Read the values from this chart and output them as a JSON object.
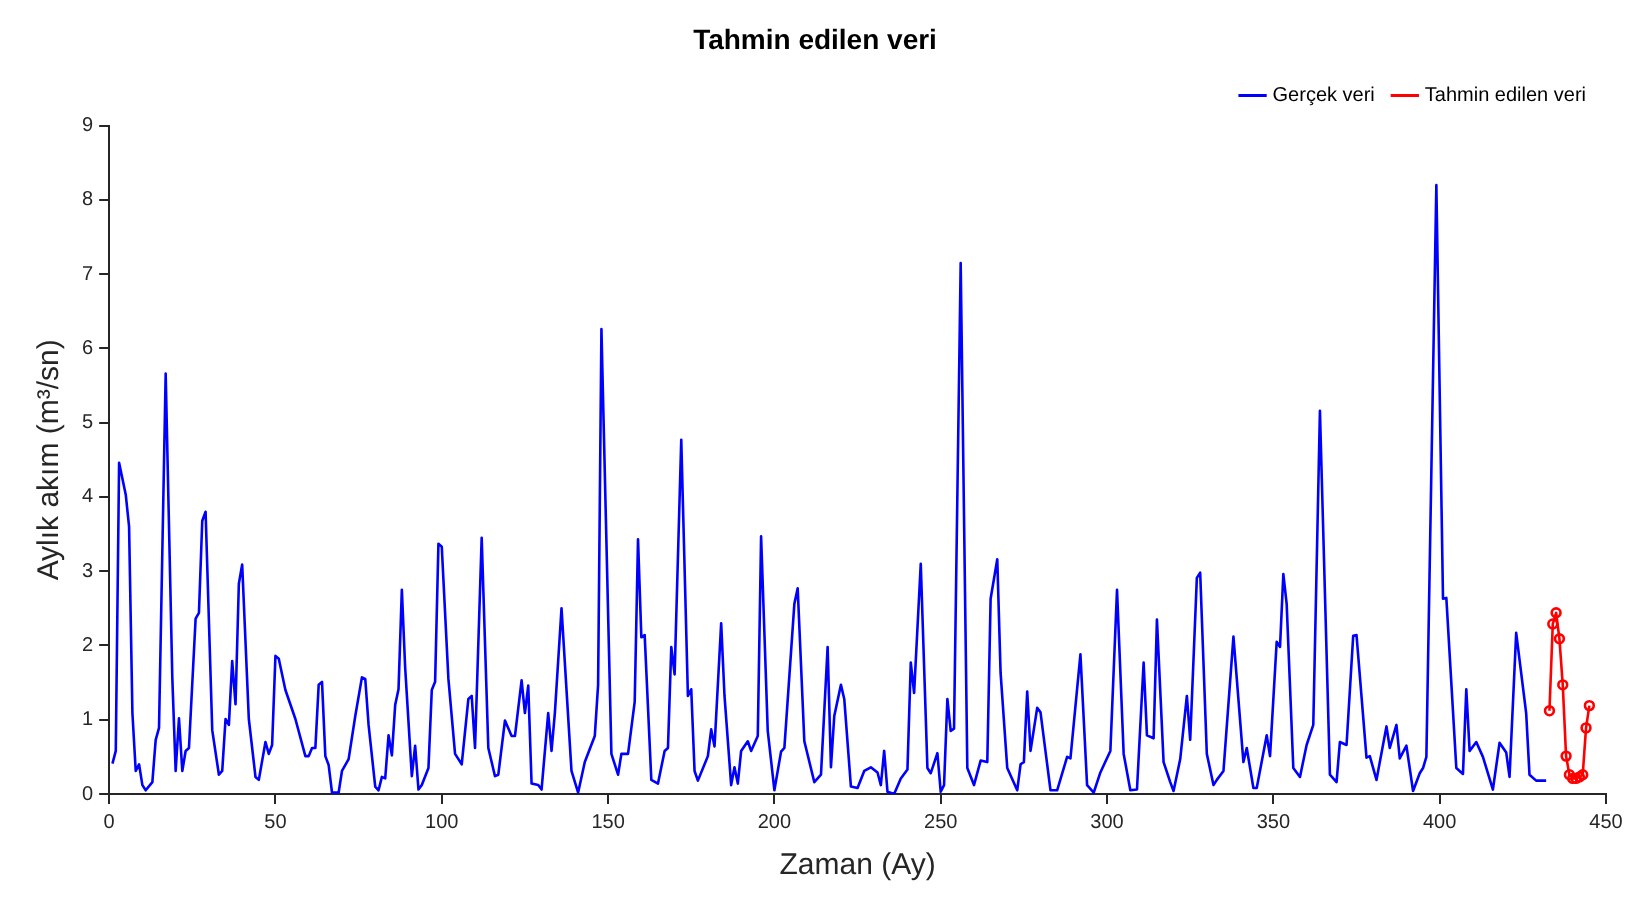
{
  "chart_data": {
    "type": "line",
    "title": "Tahmin edilen veri",
    "xlabel": "Zaman (Ay)",
    "ylabel": "Aylık akım (m³/sn)",
    "xlim": [
      0,
      450
    ],
    "xticks": [
      0,
      50,
      100,
      150,
      200,
      250,
      300,
      350,
      400,
      450
    ],
    "ylim": [
      0,
      9
    ],
    "yticks": [
      0,
      1,
      2,
      3,
      4,
      5,
      6,
      7,
      8,
      9
    ],
    "grid": false,
    "legend": "top right",
    "series": [
      {
        "name": "Gerçek veri",
        "color": "#0000ff",
        "marker": "none",
        "x": [
          1,
          2,
          3,
          5,
          6,
          7,
          8,
          9,
          10,
          11,
          13,
          14,
          15,
          17,
          19,
          20,
          21,
          22,
          23,
          24,
          26,
          27,
          28,
          29,
          31,
          33,
          34,
          35,
          36,
          37,
          38,
          39,
          40,
          42,
          44,
          45,
          47,
          48,
          49,
          50,
          51,
          53,
          56,
          59,
          60,
          61,
          62,
          63,
          64,
          65,
          66,
          67,
          69,
          70,
          72,
          74,
          76,
          77,
          78,
          80,
          81,
          82,
          83,
          84,
          85,
          86,
          87,
          88,
          89,
          91,
          92,
          93,
          94,
          96,
          97,
          98,
          99,
          100,
          102,
          104,
          106,
          108,
          109,
          110,
          112,
          114,
          116,
          117,
          119,
          121,
          122,
          124,
          125,
          126,
          127,
          129,
          130,
          132,
          133,
          134,
          136,
          139,
          141,
          143,
          146,
          147,
          148,
          151,
          153,
          154,
          156,
          158,
          159,
          160,
          161,
          163,
          165,
          167,
          168,
          169,
          170,
          172,
          174,
          175,
          176,
          177,
          180,
          181,
          182,
          184,
          185,
          187,
          188,
          189,
          190,
          192,
          193,
          195,
          196,
          198,
          200,
          202,
          203,
          206,
          207,
          209,
          212,
          214,
          216,
          217,
          218,
          220,
          221,
          223,
          225,
          227,
          229,
          231,
          232,
          233,
          234,
          236,
          238,
          240,
          241,
          242,
          244,
          246,
          247,
          249,
          250,
          251,
          252,
          253,
          254,
          256,
          258,
          260,
          262,
          264,
          265,
          267,
          268,
          270,
          273,
          274,
          275,
          276,
          277,
          279,
          280,
          283,
          285,
          288,
          289,
          292,
          294,
          296,
          298,
          301,
          303,
          305,
          307,
          309,
          311,
          312,
          314,
          315,
          317,
          319,
          320,
          322,
          324,
          325,
          327,
          328,
          330,
          332,
          333,
          335,
          338,
          341,
          342,
          344,
          345,
          348,
          349,
          351,
          352,
          353,
          354,
          356,
          358,
          360,
          362,
          364,
          367,
          369,
          370,
          372,
          374,
          375,
          378,
          379,
          381,
          384,
          385,
          387,
          388,
          390,
          392,
          394,
          395,
          396,
          399,
          401,
          402,
          405,
          407,
          408,
          409,
          411,
          413,
          416,
          418,
          420,
          421,
          423,
          426,
          427,
          429,
          432
        ],
        "values": [
          0.41,
          0.58,
          4.46,
          4.03,
          3.6,
          1.09,
          0.31,
          0.4,
          0.12,
          0.05,
          0.16,
          0.73,
          0.89,
          5.66,
          1.56,
          0.31,
          1.02,
          0.31,
          0.58,
          0.62,
          2.36,
          2.44,
          3.68,
          3.8,
          0.86,
          0.26,
          0.31,
          1.01,
          0.93,
          1.79,
          1.21,
          2.83,
          3.09,
          1.01,
          0.23,
          0.19,
          0.7,
          0.54,
          0.66,
          1.86,
          1.82,
          1.4,
          1.01,
          0.51,
          0.51,
          0.62,
          0.62,
          1.47,
          1.51,
          0.51,
          0.39,
          0.02,
          0.02,
          0.31,
          0.47,
          1.05,
          1.57,
          1.55,
          0.93,
          0.1,
          0.05,
          0.23,
          0.21,
          0.79,
          0.52,
          1.2,
          1.41,
          2.75,
          1.7,
          0.24,
          0.65,
          0.06,
          0.12,
          0.35,
          1.4,
          1.51,
          3.37,
          3.33,
          1.55,
          0.54,
          0.4,
          1.28,
          1.32,
          0.62,
          3.45,
          0.62,
          0.24,
          0.26,
          0.99,
          0.78,
          0.78,
          1.53,
          1.09,
          1.46,
          0.14,
          0.12,
          0.06,
          1.09,
          0.58,
          1.09,
          2.5,
          0.31,
          0.02,
          0.43,
          0.78,
          1.47,
          6.26,
          0.54,
          0.26,
          0.54,
          0.54,
          1.24,
          3.43,
          2.11,
          2.14,
          0.19,
          0.14,
          0.58,
          0.62,
          1.98,
          1.61,
          4.77,
          1.32,
          1.41,
          0.31,
          0.18,
          0.51,
          0.87,
          0.64,
          2.3,
          1.32,
          0.12,
          0.36,
          0.14,
          0.58,
          0.71,
          0.58,
          0.78,
          3.47,
          0.85,
          0.05,
          0.57,
          0.62,
          2.56,
          2.77,
          0.71,
          0.16,
          0.26,
          1.98,
          0.36,
          1.05,
          1.47,
          1.28,
          0.1,
          0.08,
          0.31,
          0.36,
          0.29,
          0.12,
          0.58,
          0.03,
          0,
          0.21,
          0.33,
          1.77,
          1.36,
          3.1,
          0.35,
          0.28,
          0.55,
          0.03,
          0.12,
          1.28,
          0.85,
          0.88,
          7.15,
          0.35,
          0.12,
          0.45,
          0.43,
          2.63,
          3.16,
          1.63,
          0.35,
          0.05,
          0.4,
          0.43,
          1.38,
          0.58,
          1.16,
          1.1,
          0.05,
          0.05,
          0.5,
          0.48,
          1.88,
          0.12,
          0.02,
          0.29,
          0.58,
          2.75,
          0.54,
          0.05,
          0.06,
          1.77,
          0.79,
          0.75,
          2.35,
          0.43,
          0.16,
          0.04,
          0.47,
          1.32,
          0.73,
          2.91,
          2.98,
          0.54,
          0.12,
          0.19,
          0.31,
          2.12,
          0.43,
          0.62,
          0.08,
          0.08,
          0.79,
          0.51,
          2.05,
          1.98,
          2.96,
          2.56,
          0.35,
          0.23,
          0.66,
          0.93,
          5.16,
          0.26,
          0.16,
          0.7,
          0.66,
          2.13,
          2.14,
          0.49,
          0.51,
          0.19,
          0.91,
          0.62,
          0.93,
          0.48,
          0.65,
          0.04,
          0.28,
          0.35,
          0.5,
          8.2,
          2.63,
          2.64,
          0.35,
          0.27,
          1.41,
          0.58,
          0.7,
          0.5,
          0.06,
          0.69,
          0.56,
          0.23,
          2.17,
          1.09,
          0.26,
          0.18,
          0.18
        ]
      },
      {
        "name": "Tahmin edilen veri",
        "color": "#ff0000",
        "marker": "circle",
        "x": [
          433,
          434,
          435,
          436,
          437,
          438,
          439,
          440,
          441,
          442,
          443,
          444,
          445
        ],
        "values": [
          1.12,
          2.29,
          2.44,
          2.09,
          1.47,
          0.51,
          0.26,
          0.21,
          0.21,
          0.23,
          0.26,
          0.89,
          1.19
        ]
      }
    ]
  }
}
